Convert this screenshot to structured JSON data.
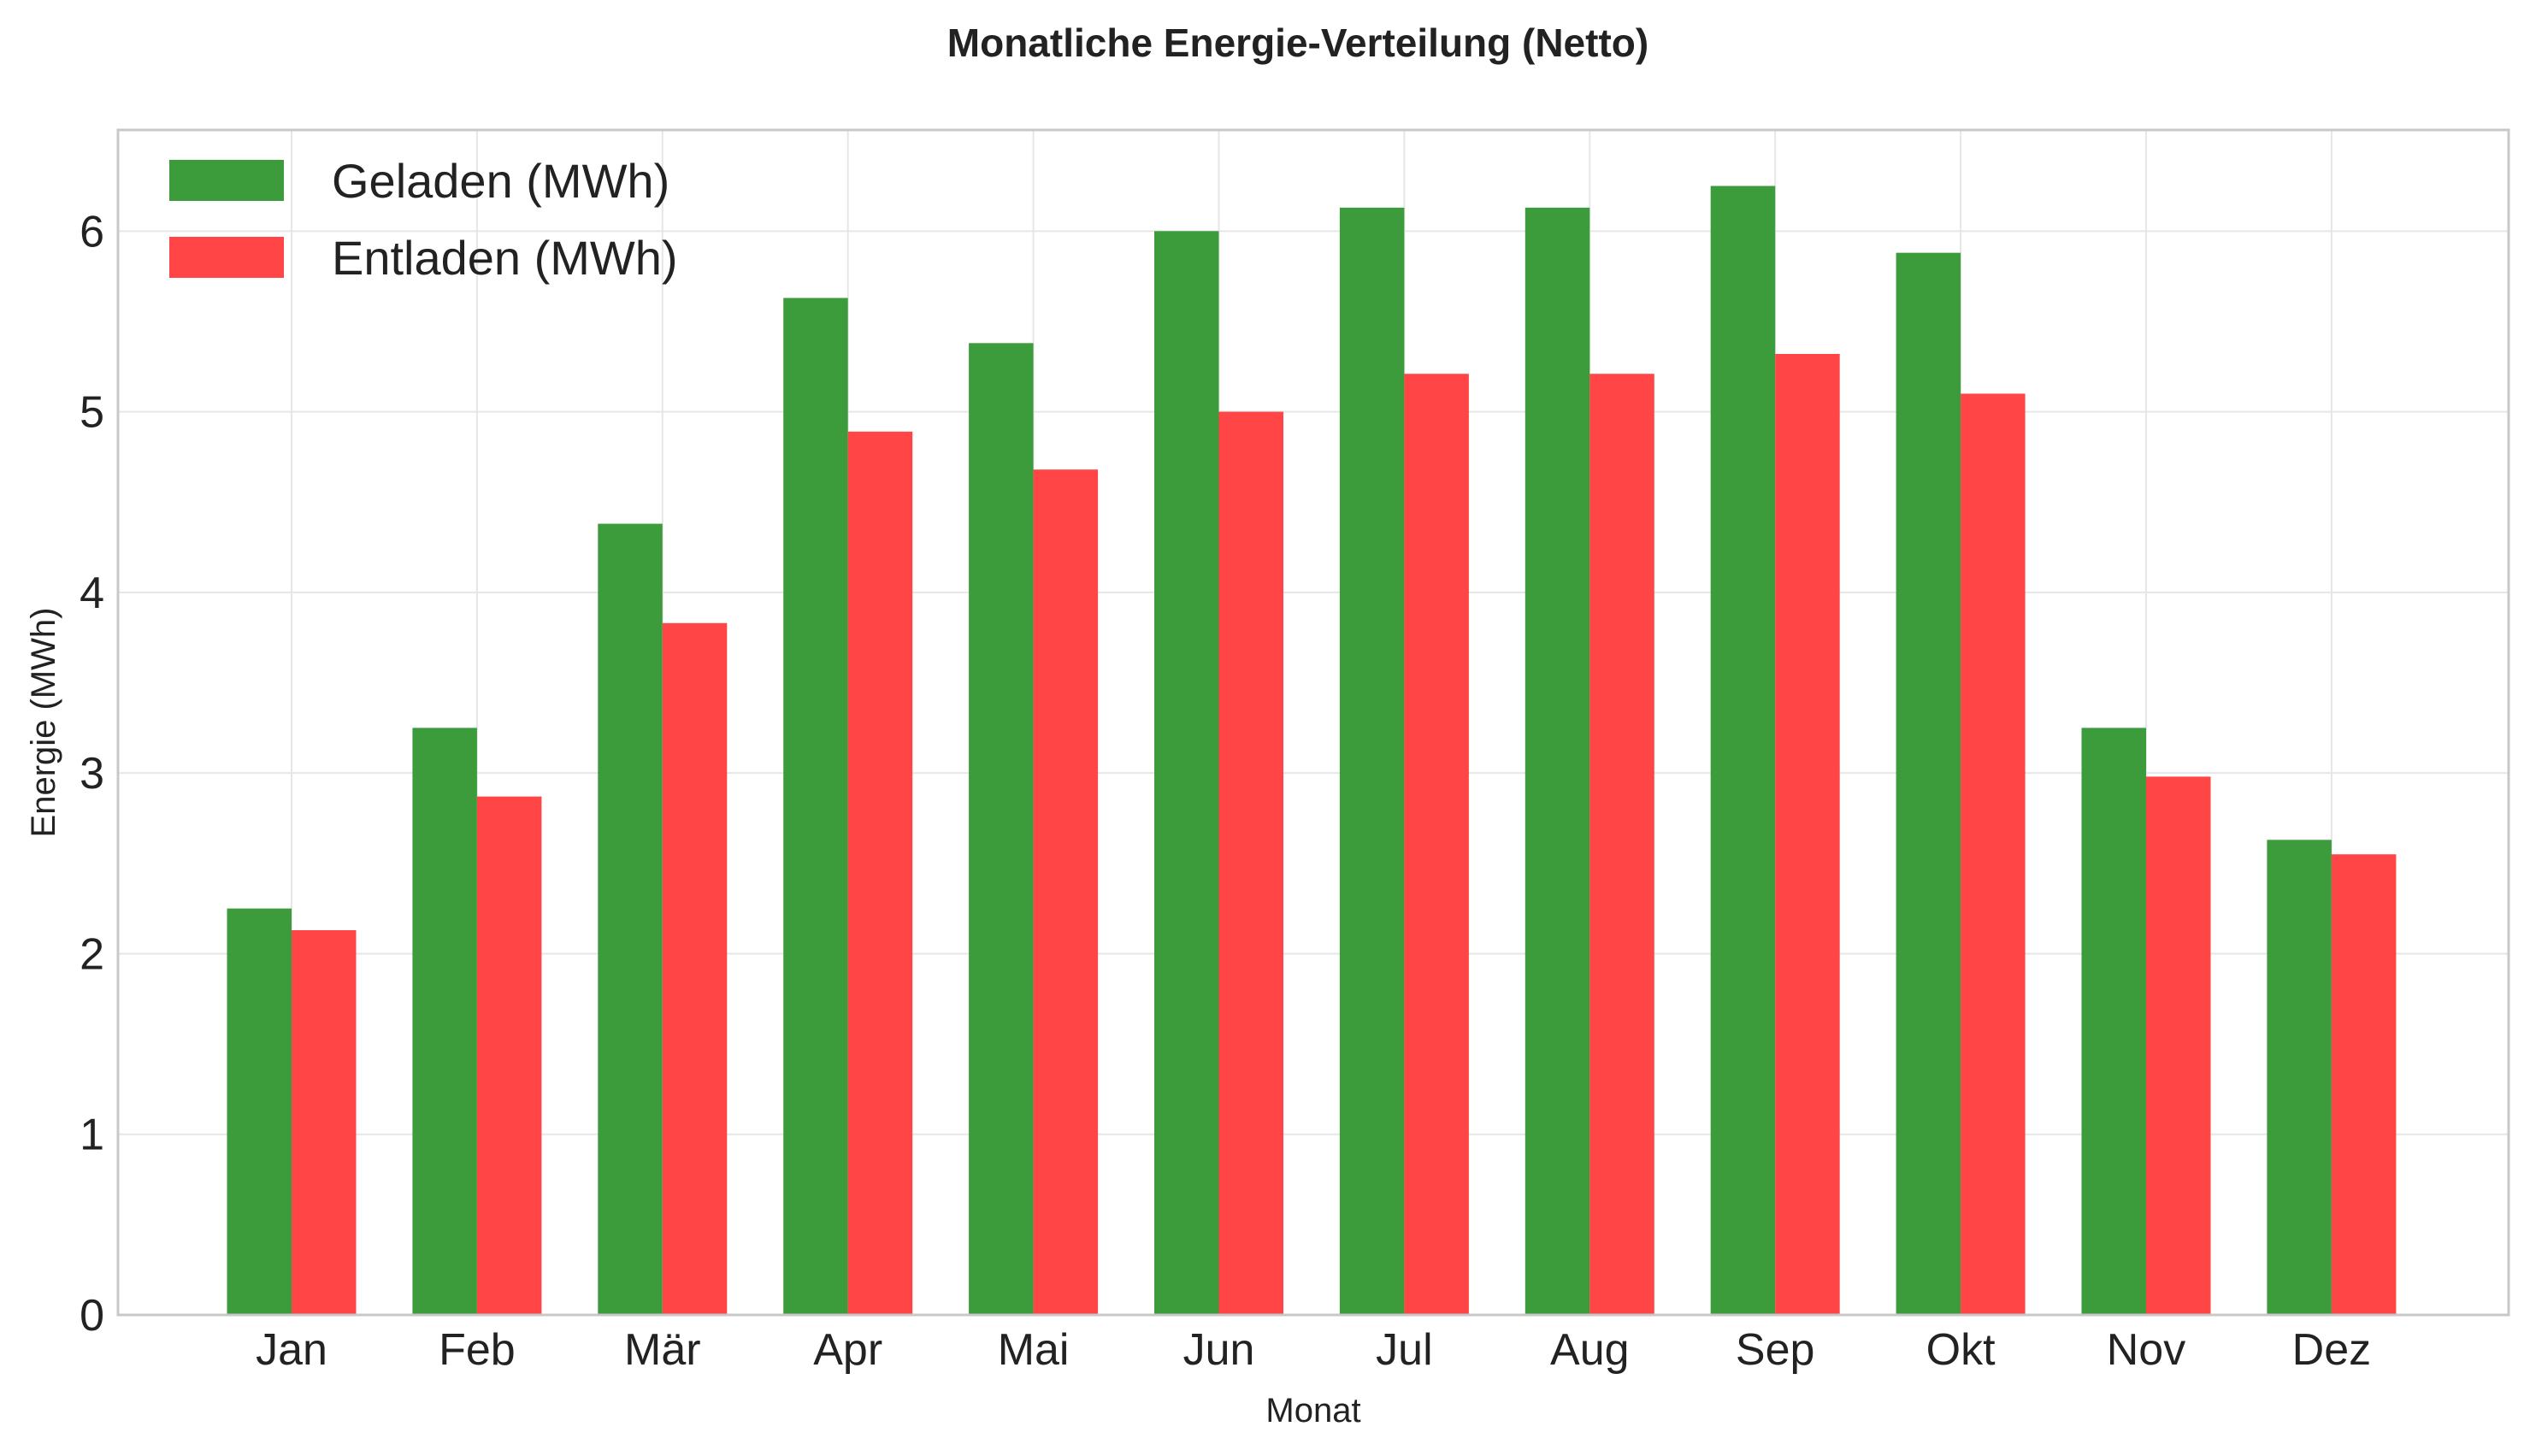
{
  "chart_data": {
    "type": "bar",
    "title": "Monatliche Energie-Verteilung (Netto)",
    "xlabel": "Monat",
    "ylabel": "Energie (MWh)",
    "categories": [
      "Jan",
      "Feb",
      "Mär",
      "Apr",
      "Mai",
      "Jun",
      "Jul",
      "Aug",
      "Sep",
      "Okt",
      "Nov",
      "Dez"
    ],
    "series": [
      {
        "name": "Geladen (MWh)",
        "color": "#3c9c3c",
        "values": [
          2.25,
          3.25,
          4.38,
          5.63,
          5.38,
          6.0,
          6.13,
          6.13,
          6.25,
          5.88,
          3.25,
          2.63
        ]
      },
      {
        "name": "Entladen (MWh)",
        "color": "#ff4545",
        "values": [
          2.13,
          2.87,
          3.83,
          4.89,
          4.68,
          5.0,
          5.21,
          5.21,
          5.32,
          5.1,
          2.98,
          2.55
        ]
      }
    ],
    "ylim": [
      0,
      6.56
    ],
    "yticks": [
      0,
      1,
      2,
      3,
      4,
      5,
      6
    ],
    "grid": true,
    "legend_position": "top-left"
  }
}
